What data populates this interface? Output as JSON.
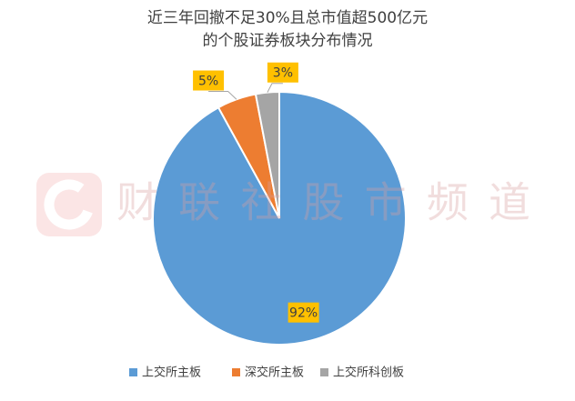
{
  "chart_data": {
    "type": "pie",
    "title": [
      "近三年回撤不足30%且总市值超500亿元",
      "的个股证券板块分布情况"
    ],
    "categories": [
      "上交所主板",
      "深交所主板",
      "上交所科创板"
    ],
    "values": [
      92,
      5,
      3
    ],
    "value_labels": [
      "92%",
      "5%",
      "3%"
    ],
    "colors": [
      "#5b9bd5",
      "#ed7d31",
      "#a5a5a5"
    ],
    "legend": "bottom",
    "watermark": "财联社股市频道"
  }
}
